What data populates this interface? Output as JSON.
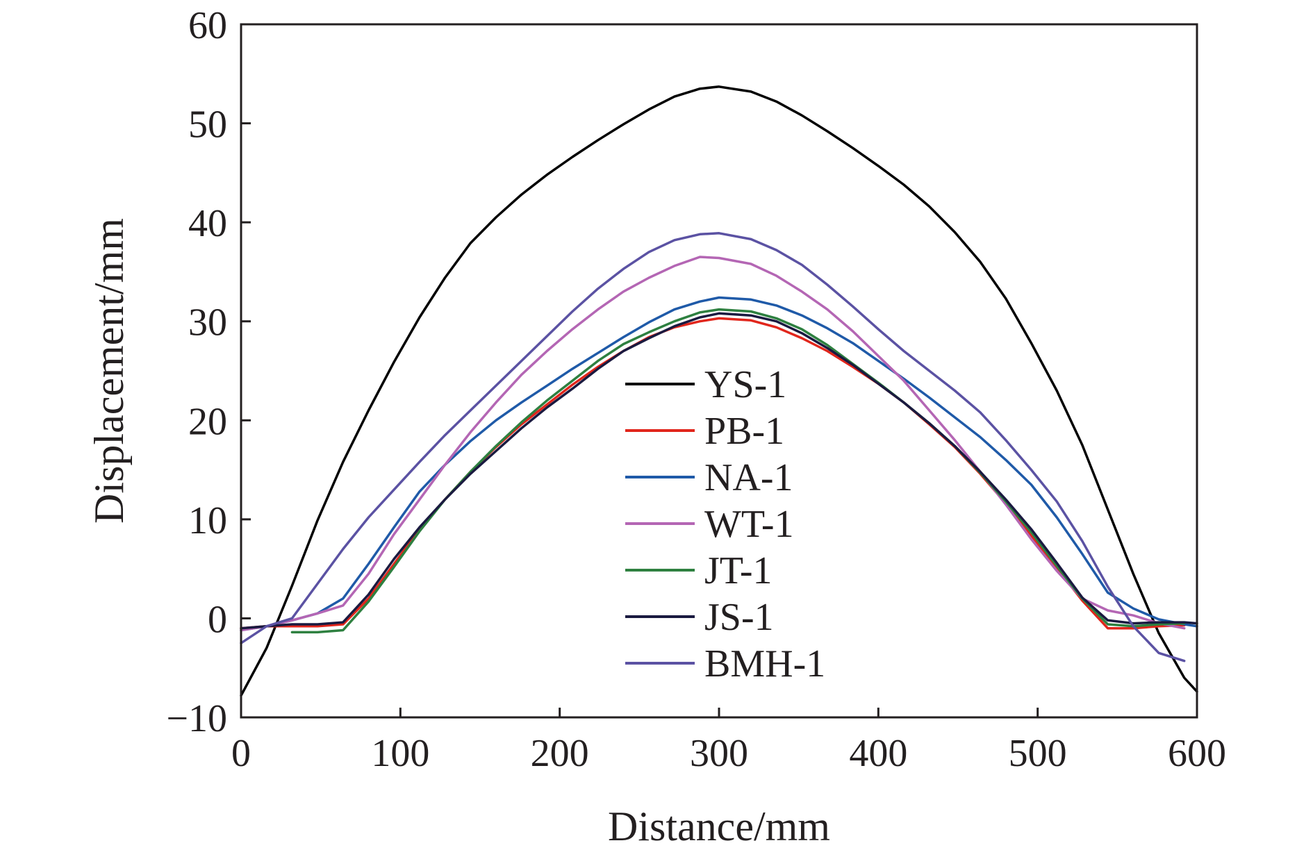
{
  "chart_data": {
    "type": "line",
    "xlabel": "Distance/mm",
    "ylabel": "Displacement/mm",
    "xlim": [
      0,
      600
    ],
    "ylim": [
      -10,
      60
    ],
    "xticks": [
      "0",
      "100",
      "200",
      "300",
      "400",
      "500",
      "600"
    ],
    "yticks": [
      "−10",
      "0",
      "10",
      "20",
      "30",
      "40",
      "50",
      "60"
    ],
    "grid": false,
    "legend_position": "center",
    "series": [
      {
        "name": "YS-1",
        "color": "#000000",
        "x": [
          0,
          16,
          32,
          48,
          64,
          80,
          96,
          112,
          128,
          144,
          160,
          176,
          192,
          208,
          224,
          240,
          256,
          272,
          288,
          300,
          320,
          336,
          352,
          368,
          384,
          400,
          416,
          432,
          448,
          464,
          480,
          496,
          512,
          528,
          544,
          560,
          576,
          592,
          600
        ],
        "y": [
          -7.8,
          -3.0,
          3.3,
          9.9,
          15.8,
          21.0,
          25.9,
          30.4,
          34.4,
          37.9,
          40.5,
          42.8,
          44.8,
          46.6,
          48.3,
          49.9,
          51.4,
          52.7,
          53.5,
          53.7,
          53.2,
          52.2,
          50.8,
          49.2,
          47.5,
          45.7,
          43.8,
          41.6,
          39.0,
          36.0,
          32.3,
          27.8,
          23.0,
          17.5,
          11.0,
          4.5,
          -1.5,
          -6.0,
          -7.4
        ]
      },
      {
        "name": "PB-1",
        "color": "#e1261c",
        "x": [
          0,
          16,
          32,
          48,
          64,
          80,
          96,
          112,
          128,
          144,
          160,
          176,
          192,
          208,
          224,
          240,
          256,
          272,
          288,
          300,
          320,
          336,
          352,
          368,
          384,
          400,
          416,
          432,
          448,
          464,
          480,
          496,
          512,
          528,
          544,
          560,
          576,
          592
        ],
        "y": [
          -1.0,
          -0.8,
          -0.8,
          -0.8,
          -0.6,
          2.0,
          5.5,
          9.0,
          12.0,
          14.8,
          17.3,
          19.6,
          21.6,
          23.6,
          25.4,
          27.0,
          28.4,
          29.4,
          30.0,
          30.3,
          30.1,
          29.4,
          28.3,
          27.0,
          25.4,
          23.7,
          21.8,
          19.6,
          17.3,
          14.6,
          11.6,
          8.3,
          5.1,
          1.8,
          -1.0,
          -1.0,
          -0.8,
          -0.7
        ]
      },
      {
        "name": "NA-1",
        "color": "#1f5aa8",
        "x": [
          0,
          16,
          32,
          48,
          64,
          80,
          96,
          112,
          128,
          144,
          160,
          176,
          192,
          208,
          224,
          240,
          256,
          272,
          288,
          300,
          320,
          336,
          352,
          368,
          384,
          400,
          416,
          432,
          448,
          464,
          480,
          496,
          512,
          528,
          544,
          560,
          576,
          592,
          600
        ],
        "y": [
          -1.2,
          -0.8,
          -0.2,
          0.5,
          2.0,
          5.5,
          9.2,
          12.8,
          15.5,
          17.9,
          20.0,
          21.8,
          23.5,
          25.2,
          26.8,
          28.4,
          29.9,
          31.2,
          32.0,
          32.4,
          32.2,
          31.6,
          30.6,
          29.3,
          27.8,
          26.0,
          24.2,
          22.3,
          20.3,
          18.3,
          16.0,
          13.5,
          10.2,
          6.5,
          2.6,
          1.0,
          -0.1,
          -0.6,
          -0.8
        ]
      },
      {
        "name": "WT-1",
        "color": "#b466b4",
        "x": [
          0,
          16,
          32,
          48,
          64,
          80,
          96,
          112,
          128,
          144,
          160,
          176,
          192,
          208,
          224,
          240,
          256,
          272,
          288,
          300,
          320,
          336,
          352,
          368,
          384,
          400,
          416,
          432,
          448,
          464,
          480,
          496,
          512,
          528,
          544,
          560,
          576,
          592
        ],
        "y": [
          -1.2,
          -0.8,
          -0.2,
          0.5,
          1.3,
          4.5,
          8.5,
          12.0,
          15.5,
          18.8,
          21.8,
          24.6,
          27.0,
          29.2,
          31.2,
          33.0,
          34.4,
          35.6,
          36.5,
          36.4,
          35.8,
          34.6,
          33.0,
          31.2,
          29.0,
          26.5,
          24.0,
          21.0,
          18.0,
          14.8,
          11.5,
          8.0,
          4.8,
          2.0,
          0.8,
          0.3,
          -0.5,
          -1.0
        ]
      },
      {
        "name": "JT-1",
        "color": "#2e8040",
        "x": [
          32,
          48,
          64,
          80,
          96,
          112,
          128,
          144,
          160,
          176,
          192,
          208,
          224,
          240,
          256,
          272,
          288,
          300,
          320,
          336,
          352,
          368,
          384,
          400,
          416,
          432,
          448,
          464,
          480,
          496,
          512,
          528,
          544,
          560,
          576,
          592
        ],
        "y": [
          -1.4,
          -1.4,
          -1.2,
          1.7,
          5.2,
          8.8,
          12.0,
          14.8,
          17.4,
          19.8,
          22.0,
          24.0,
          26.0,
          27.7,
          28.9,
          30.0,
          30.9,
          31.2,
          31.0,
          30.3,
          29.2,
          27.6,
          25.7,
          23.8,
          21.8,
          19.7,
          17.4,
          14.7,
          11.8,
          8.7,
          5.3,
          2.0,
          -0.6,
          -0.8,
          -0.6,
          -0.5
        ]
      },
      {
        "name": "JS-1",
        "color": "#1a1a40",
        "x": [
          0,
          16,
          32,
          48,
          64,
          80,
          96,
          112,
          128,
          144,
          160,
          176,
          192,
          208,
          224,
          240,
          256,
          272,
          288,
          300,
          320,
          336,
          352,
          368,
          384,
          400,
          416,
          432,
          448,
          464,
          480,
          496,
          512,
          528,
          544,
          560,
          576,
          592,
          600
        ],
        "y": [
          -1.0,
          -0.8,
          -0.6,
          -0.6,
          -0.4,
          2.4,
          6.0,
          9.2,
          12.0,
          14.6,
          16.9,
          19.2,
          21.3,
          23.2,
          25.2,
          27.0,
          28.3,
          29.5,
          30.4,
          30.8,
          30.6,
          30.0,
          28.8,
          27.3,
          25.6,
          23.7,
          21.8,
          19.7,
          17.4,
          14.8,
          12.0,
          9.0,
          5.6,
          2.1,
          -0.2,
          -0.5,
          -0.4,
          -0.4,
          -0.5
        ]
      },
      {
        "name": "BMH-1",
        "color": "#5b52a3",
        "x": [
          0,
          16,
          32,
          48,
          64,
          80,
          96,
          112,
          128,
          144,
          160,
          176,
          192,
          208,
          224,
          240,
          256,
          272,
          288,
          300,
          320,
          336,
          352,
          368,
          384,
          400,
          416,
          432,
          448,
          464,
          480,
          496,
          512,
          528,
          544,
          560,
          576,
          592
        ],
        "y": [
          -2.5,
          -0.8,
          0.0,
          3.5,
          7.0,
          10.2,
          13.0,
          15.8,
          18.5,
          21.0,
          23.5,
          26.0,
          28.5,
          31.0,
          33.3,
          35.3,
          37.0,
          38.2,
          38.8,
          38.9,
          38.3,
          37.2,
          35.7,
          33.7,
          31.5,
          29.2,
          27.0,
          25.0,
          23.0,
          20.8,
          18.0,
          15.0,
          11.8,
          7.8,
          3.2,
          -0.8,
          -3.5,
          -4.3
        ]
      }
    ]
  }
}
